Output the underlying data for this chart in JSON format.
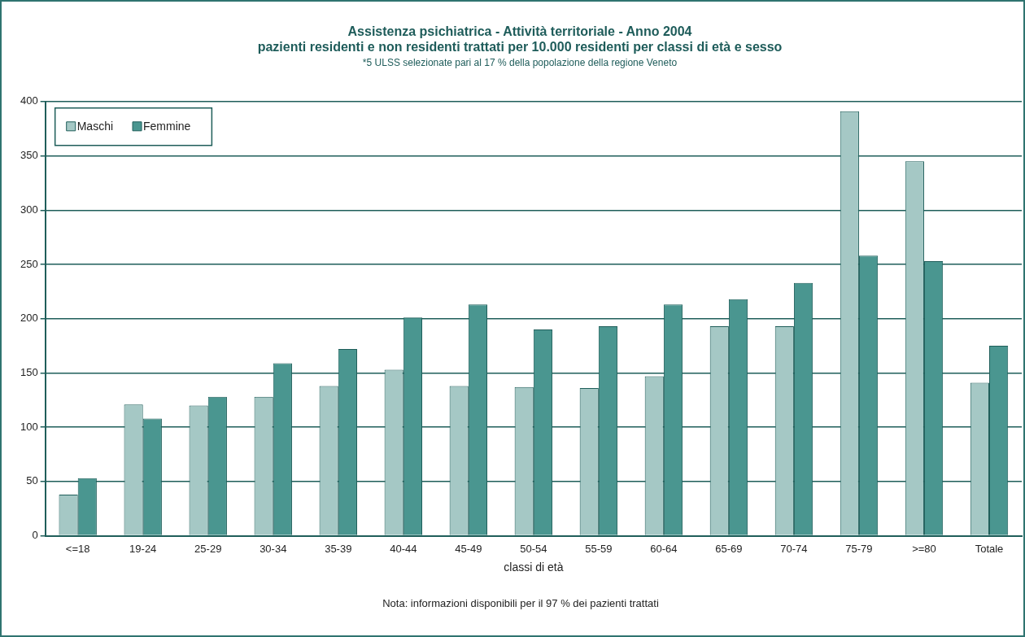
{
  "chart_data": {
    "type": "bar",
    "title": "Assistenza psichiatrica - Attività territoriale - Anno 2004\npazienti residenti e non residenti trattati per 10.000 residenti per classi di età e sesso",
    "subtitle": "*5 ULSS selezionate pari al 17 % della popolazione della regione Veneto",
    "xlabel": "classi di età",
    "categories": [
      "<=18",
      "19-24",
      "25-29",
      "30-34",
      "35-39",
      "40-44",
      "45-49",
      "50-54",
      "55-59",
      "60-64",
      "65-69",
      "70-74",
      "75-79",
      ">=80",
      "Totale"
    ],
    "series": [
      {
        "name": "Maschi",
        "color": "#a5c8c5",
        "values": [
          38,
          121,
          120,
          128,
          138,
          153,
          138,
          137,
          136,
          147,
          193,
          193,
          391,
          345,
          141
        ]
      },
      {
        "name": "Femmine",
        "color": "#4a9690",
        "values": [
          53,
          108,
          128,
          159,
          172,
          201,
          213,
          190,
          193,
          213,
          218,
          233,
          258,
          253,
          175
        ]
      }
    ],
    "ylim": [
      0,
      400
    ],
    "yticks": [
      0,
      50,
      100,
      150,
      200,
      250,
      300,
      350,
      400
    ],
    "grid": "y",
    "legend": "top left",
    "annotations": [
      "Nota: informazioni disponibili per il 97 % dei pazienti trattati"
    ]
  }
}
